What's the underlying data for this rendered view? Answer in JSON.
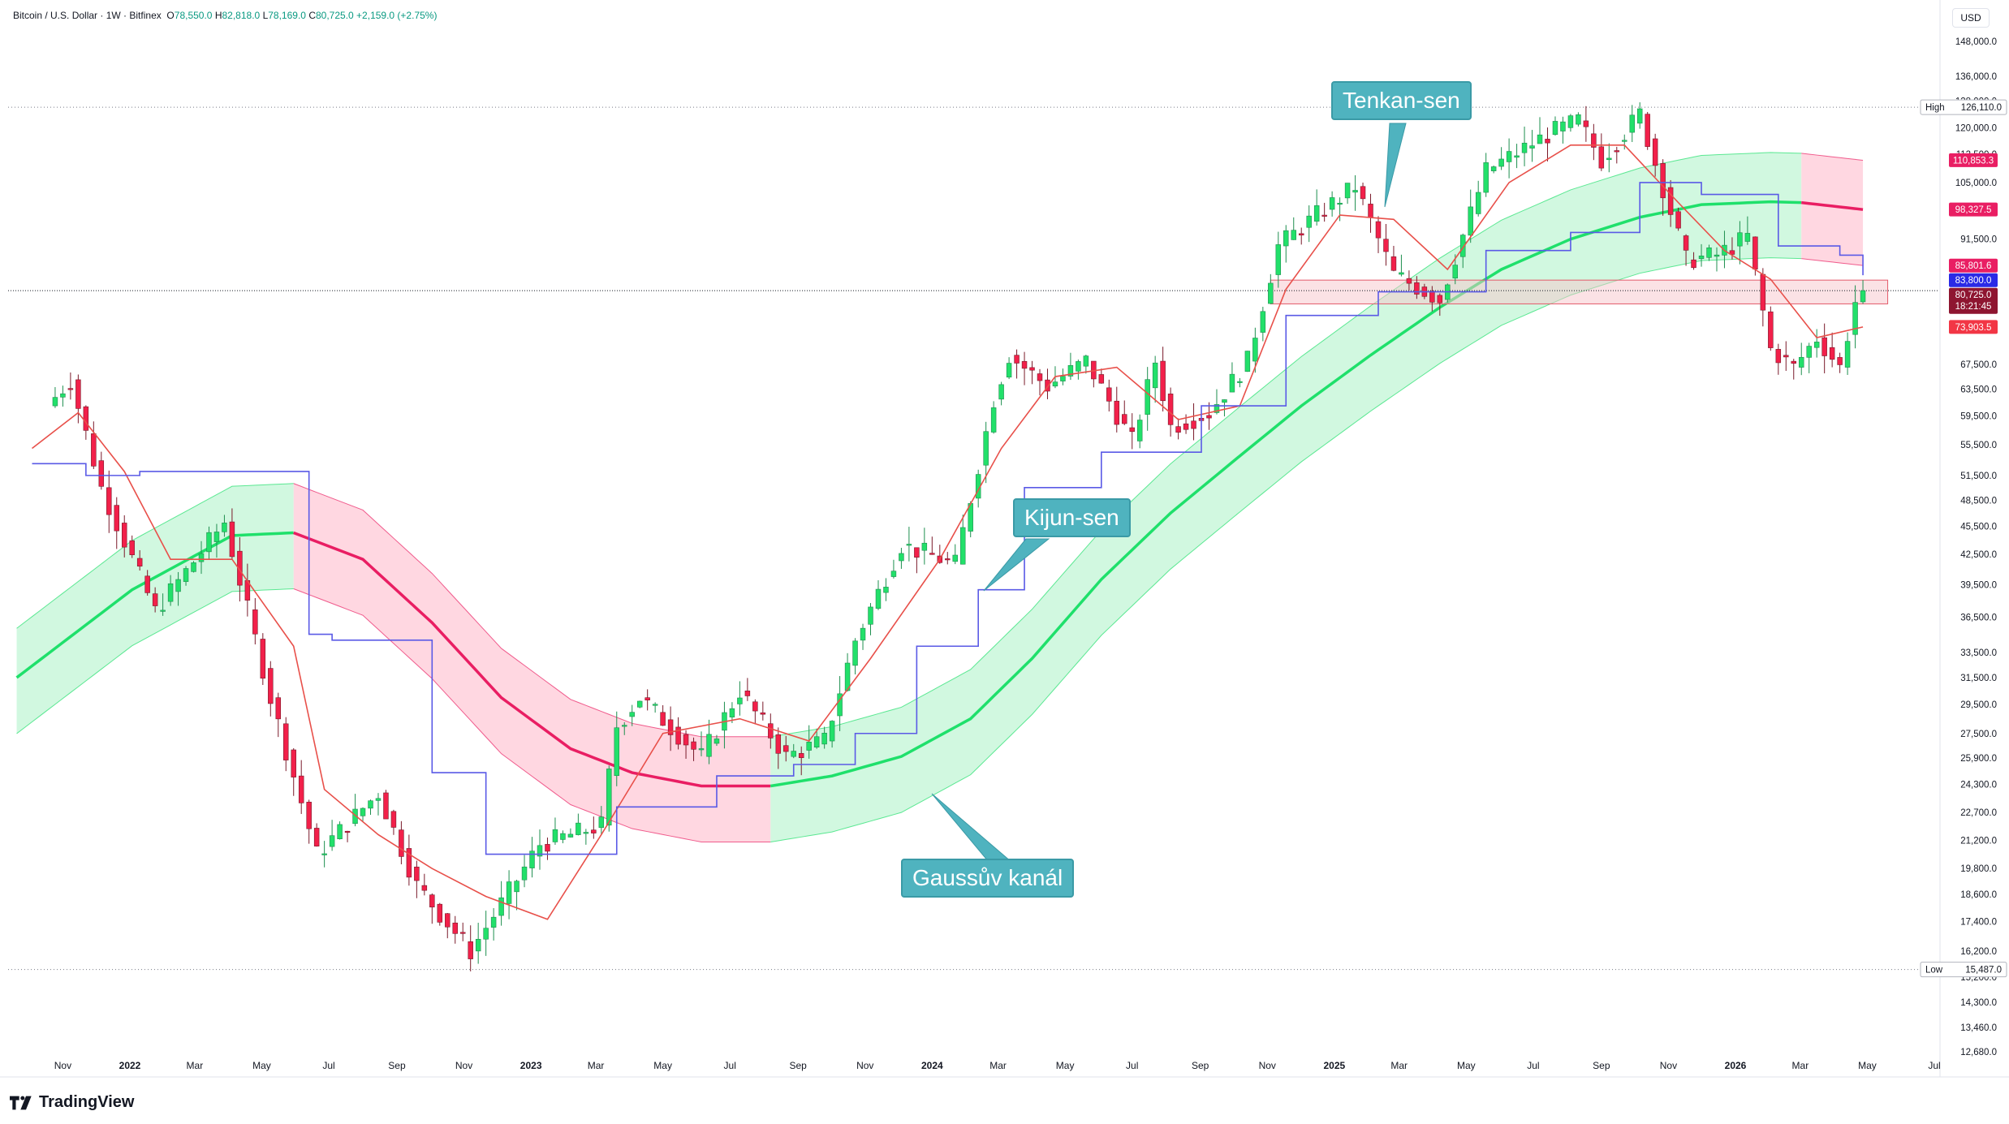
{
  "header": {
    "symbol": "Bitcoin / U.S. Dollar",
    "interval": "1W",
    "exchange": "Bitfinex",
    "o_label": "O",
    "o_value": "78,550.0",
    "h_label": "H",
    "h_value": "82,818.0",
    "l_label": "L",
    "l_value": "78,169.0",
    "c_label": "C",
    "c_value": "80,725.0",
    "change": "+2,159.0 (+2.75%)"
  },
  "currency": "USD",
  "brand": "TradingView",
  "annotations": {
    "tenkan": "Tenkan-sen",
    "kijun": "Kijun-sen",
    "gauss": "Gaussův kanál"
  },
  "colors": {
    "up": "#22e06a",
    "down": "#f2204a",
    "tenkan": "#e8504a",
    "kijun": "#5a5ae6",
    "gauss_up_fill": "#c9f7da",
    "gauss_up_line": "#1fe06b",
    "gauss_down_fill": "#ffd0dc",
    "gauss_down_line": "#e91e63",
    "callout": "#4fb3bf"
  },
  "chart_data": {
    "type": "candlestick",
    "scale": "log",
    "ylim": [
      12680,
      148000
    ],
    "y_ticks": [
      "148,000.0",
      "136,000.0",
      "128,000.0",
      "120,000.0",
      "112,500.0",
      "105,000.0",
      "98,000.0",
      "91,500.0",
      "85,500.0",
      "79,500.0",
      "73,500.0",
      "67,500.0",
      "63,500.0",
      "59,500.0",
      "55,500.0",
      "51,500.0",
      "48,500.0",
      "45,500.0",
      "42,500.0",
      "39,500.0",
      "36,500.0",
      "33,500.0",
      "31,500.0",
      "29,500.0",
      "27,500.0",
      "25,900.0",
      "24,300.0",
      "22,700.0",
      "21,200.0",
      "19,800.0",
      "18,600.0",
      "17,400.0",
      "16,200.0",
      "15,200.0",
      "14,300.0",
      "13,460.0",
      "12,680.0"
    ],
    "x_ticks": [
      {
        "label": "Nov",
        "date": "2021-11-01",
        "bold": false
      },
      {
        "label": "2022",
        "date": "2022-01-01",
        "bold": true
      },
      {
        "label": "Mar",
        "date": "2022-03-01",
        "bold": false
      },
      {
        "label": "May",
        "date": "2022-05-01",
        "bold": false
      },
      {
        "label": "Jul",
        "date": "2022-07-01",
        "bold": false
      },
      {
        "label": "Sep",
        "date": "2022-09-01",
        "bold": false
      },
      {
        "label": "Nov",
        "date": "2022-11-01",
        "bold": false
      },
      {
        "label": "2023",
        "date": "2023-01-01",
        "bold": true
      },
      {
        "label": "Mar",
        "date": "2023-03-01",
        "bold": false
      },
      {
        "label": "May",
        "date": "2023-05-01",
        "bold": false
      },
      {
        "label": "Jul",
        "date": "2023-07-01",
        "bold": false
      },
      {
        "label": "Sep",
        "date": "2023-09-01",
        "bold": false
      },
      {
        "label": "Nov",
        "date": "2023-11-01",
        "bold": false
      },
      {
        "label": "2024",
        "date": "2024-01-01",
        "bold": true
      },
      {
        "label": "Mar",
        "date": "2024-03-01",
        "bold": false
      },
      {
        "label": "May",
        "date": "2024-05-01",
        "bold": false
      },
      {
        "label": "Jul",
        "date": "2024-07-01",
        "bold": false
      },
      {
        "label": "Sep",
        "date": "2024-09-01",
        "bold": false
      },
      {
        "label": "Nov",
        "date": "2024-11-01",
        "bold": false
      },
      {
        "label": "2025",
        "date": "2025-01-01",
        "bold": true
      },
      {
        "label": "Mar",
        "date": "2025-03-01",
        "bold": false
      },
      {
        "label": "May",
        "date": "2025-05-01",
        "bold": false
      },
      {
        "label": "Jul",
        "date": "2025-07-01",
        "bold": false
      },
      {
        "label": "Sep",
        "date": "2025-09-01",
        "bold": false
      },
      {
        "label": "Nov",
        "date": "2025-11-01",
        "bold": false
      },
      {
        "label": "2026",
        "date": "2026-01-01",
        "bold": true
      },
      {
        "label": "Mar",
        "date": "2026-03-01",
        "bold": false
      },
      {
        "label": "May",
        "date": "2026-05-01",
        "bold": false
      },
      {
        "label": "Jul",
        "date": "2026-07-01",
        "bold": false
      }
    ],
    "high_marker": {
      "label": "High",
      "value": 126110.0,
      "text": "126,110.0"
    },
    "low_marker": {
      "label": "Low",
      "value": 15487.0,
      "text": "15,487.0"
    },
    "price_labels": [
      {
        "value": 110853.3,
        "text": "110,853.3",
        "color": "#e91e63"
      },
      {
        "value": 98327.5,
        "text": "98,327.5",
        "color": "#e91e63"
      },
      {
        "value": 85801.6,
        "text": "85,801.6",
        "color": "#e91e63"
      },
      {
        "value": 83800.0,
        "text": "83,800.0",
        "color": "#2a2ae6"
      },
      {
        "value": 80725.0,
        "text": "80,725.0",
        "color": "#8e1530"
      },
      {
        "value": 73903.5,
        "text": "73,903.5",
        "color": "#f23645"
      }
    ],
    "countdown": "18:21:45",
    "zone": {
      "from_date": "2024-11-04",
      "to_date": "2026-04-20",
      "low": 78169,
      "high": 82818
    },
    "key_closes": [
      {
        "date": "2021-10-18",
        "close": 61000
      },
      {
        "date": "2021-11-08",
        "close": 65000
      },
      {
        "date": "2021-12-06",
        "close": 50000
      },
      {
        "date": "2022-01-24",
        "close": 37000
      },
      {
        "date": "2022-03-28",
        "close": 46000
      },
      {
        "date": "2022-05-09",
        "close": 30000
      },
      {
        "date": "2022-06-20",
        "close": 20500
      },
      {
        "date": "2022-08-15",
        "close": 23800
      },
      {
        "date": "2022-09-19",
        "close": 19000
      },
      {
        "date": "2022-11-07",
        "close": 16200
      },
      {
        "date": "2023-01-09",
        "close": 21000
      },
      {
        "date": "2023-03-06",
        "close": 22000
      },
      {
        "date": "2023-03-20",
        "close": 28000
      },
      {
        "date": "2023-04-10",
        "close": 30000
      },
      {
        "date": "2023-06-05",
        "close": 26000
      },
      {
        "date": "2023-07-10",
        "close": 30500
      },
      {
        "date": "2023-08-21",
        "close": 26000
      },
      {
        "date": "2023-09-25",
        "close": 27000
      },
      {
        "date": "2023-10-23",
        "close": 34500
      },
      {
        "date": "2023-12-04",
        "close": 43500
      },
      {
        "date": "2024-01-22",
        "close": 41500
      },
      {
        "date": "2024-02-26",
        "close": 62000
      },
      {
        "date": "2024-03-11",
        "close": 69000
      },
      {
        "date": "2024-04-15",
        "close": 64000
      },
      {
        "date": "2024-05-20",
        "close": 68000
      },
      {
        "date": "2024-07-01",
        "close": 56000
      },
      {
        "date": "2024-07-22",
        "close": 68000
      },
      {
        "date": "2024-08-05",
        "close": 58000
      },
      {
        "date": "2024-09-09",
        "close": 60000
      },
      {
        "date": "2024-10-14",
        "close": 68000
      },
      {
        "date": "2024-11-11",
        "close": 90000
      },
      {
        "date": "2024-12-16",
        "close": 97000
      },
      {
        "date": "2025-01-20",
        "close": 104000
      },
      {
        "date": "2025-02-24",
        "close": 84000
      },
      {
        "date": "2025-04-07",
        "close": 79000
      },
      {
        "date": "2025-05-19",
        "close": 108000
      },
      {
        "date": "2025-07-14",
        "close": 118000
      },
      {
        "date": "2025-08-11",
        "close": 122000
      },
      {
        "date": "2025-09-01",
        "close": 111000
      },
      {
        "date": "2025-10-06",
        "close": 124000
      },
      {
        "date": "2025-10-20",
        "close": 110000
      },
      {
        "date": "2025-11-17",
        "close": 87000
      },
      {
        "date": "2025-12-15",
        "close": 88000
      },
      {
        "date": "2026-01-12",
        "close": 92000
      },
      {
        "date": "2026-02-02",
        "close": 70000
      },
      {
        "date": "2026-02-23",
        "close": 67000
      },
      {
        "date": "2026-03-16",
        "close": 72000
      },
      {
        "date": "2026-04-06",
        "close": 67000
      },
      {
        "date": "2026-04-20",
        "close": 78566
      },
      {
        "date": "2026-04-27",
        "close": 80725
      }
    ],
    "last_candle": {
      "open": 78550.0,
      "high": 82818.0,
      "low": 78169.0,
      "close": 80725.0
    },
    "gauss_basis": [
      {
        "date": "2021-09-20",
        "value": 31500
      },
      {
        "date": "2022-01-03",
        "value": 39000
      },
      {
        "date": "2022-04-04",
        "value": 44500
      },
      {
        "date": "2022-05-30",
        "value": 44800
      },
      {
        "date": "2022-08-01",
        "value": 42000
      },
      {
        "date": "2022-10-03",
        "value": 36000
      },
      {
        "date": "2022-12-05",
        "value": 30000
      },
      {
        "date": "2023-02-06",
        "value": 26500
      },
      {
        "date": "2023-04-03",
        "value": 25000
      },
      {
        "date": "2023-06-05",
        "value": 24200
      },
      {
        "date": "2023-08-07",
        "value": 24200
      },
      {
        "date": "2023-10-02",
        "value": 24800
      },
      {
        "date": "2023-12-04",
        "value": 26000
      },
      {
        "date": "2024-02-05",
        "value": 28500
      },
      {
        "date": "2024-04-01",
        "value": 33000
      },
      {
        "date": "2024-06-03",
        "value": 40000
      },
      {
        "date": "2024-08-05",
        "value": 47000
      },
      {
        "date": "2024-10-07",
        "value": 54000
      },
      {
        "date": "2024-12-02",
        "value": 61000
      },
      {
        "date": "2025-02-03",
        "value": 69000
      },
      {
        "date": "2025-04-07",
        "value": 77500
      },
      {
        "date": "2025-06-02",
        "value": 85000
      },
      {
        "date": "2025-08-04",
        "value": 91500
      },
      {
        "date": "2025-10-06",
        "value": 96500
      },
      {
        "date": "2025-12-01",
        "value": 99500
      },
      {
        "date": "2026-02-02",
        "value": 100200
      },
      {
        "date": "2026-03-02",
        "value": 100000
      },
      {
        "date": "2026-04-27",
        "value": 98327.5
      }
    ],
    "gauss_direction_changes": [
      {
        "from_date": "2021-09-20",
        "to_date": "2022-05-30",
        "direction": "up"
      },
      {
        "from_date": "2022-05-30",
        "to_date": "2023-08-07",
        "direction": "down"
      },
      {
        "from_date": "2023-08-07",
        "to_date": "2026-03-02",
        "direction": "up"
      },
      {
        "from_date": "2026-03-02",
        "to_date": "2026-04-27",
        "direction": "down"
      }
    ],
    "gauss_band_ratio_upper": 1.1273,
    "gauss_band_ratio_lower": 0.8727,
    "tenkan_sen": [
      {
        "date": "2021-10-04",
        "value": 55000
      },
      {
        "date": "2021-11-15",
        "value": 60000
      },
      {
        "date": "2021-12-27",
        "value": 52000
      },
      {
        "date": "2022-02-07",
        "value": 42000
      },
      {
        "date": "2022-04-04",
        "value": 42000
      },
      {
        "date": "2022-05-30",
        "value": 34000
      },
      {
        "date": "2022-06-27",
        "value": 24000
      },
      {
        "date": "2022-08-15",
        "value": 21500
      },
      {
        "date": "2022-10-03",
        "value": 19800
      },
      {
        "date": "2022-11-21",
        "value": 18500
      },
      {
        "date": "2023-01-16",
        "value": 17500
      },
      {
        "date": "2023-03-06",
        "value": 21500
      },
      {
        "date": "2023-05-01",
        "value": 27500
      },
      {
        "date": "2023-07-10",
        "value": 28500
      },
      {
        "date": "2023-09-11",
        "value": 27000
      },
      {
        "date": "2023-11-06",
        "value": 33000
      },
      {
        "date": "2024-01-08",
        "value": 42000
      },
      {
        "date": "2024-03-04",
        "value": 55000
      },
      {
        "date": "2024-04-22",
        "value": 65500
      },
      {
        "date": "2024-06-17",
        "value": 67000
      },
      {
        "date": "2024-08-12",
        "value": 59000
      },
      {
        "date": "2024-10-07",
        "value": 61000
      },
      {
        "date": "2024-11-18",
        "value": 81000
      },
      {
        "date": "2025-01-06",
        "value": 97000
      },
      {
        "date": "2025-02-24",
        "value": 96000
      },
      {
        "date": "2025-04-14",
        "value": 85000
      },
      {
        "date": "2025-06-09",
        "value": 105000
      },
      {
        "date": "2025-08-04",
        "value": 115000
      },
      {
        "date": "2025-09-22",
        "value": 115000
      },
      {
        "date": "2025-11-10",
        "value": 100000
      },
      {
        "date": "2025-12-22",
        "value": 89000
      },
      {
        "date": "2026-02-02",
        "value": 83000
      },
      {
        "date": "2026-03-16",
        "value": 72000
      },
      {
        "date": "2026-04-27",
        "value": 73903.5
      }
    ],
    "kijun_sen": [
      {
        "date": "2021-10-04",
        "value": 53000
      },
      {
        "date": "2021-11-22",
        "value": 51500
      },
      {
        "date": "2022-01-10",
        "value": 52000
      },
      {
        "date": "2022-05-16",
        "value": 52000
      },
      {
        "date": "2022-06-13",
        "value": 35000
      },
      {
        "date": "2022-07-04",
        "value": 34500
      },
      {
        "date": "2022-09-05",
        "value": 34500
      },
      {
        "date": "2022-10-03",
        "value": 25000
      },
      {
        "date": "2022-11-21",
        "value": 20500
      },
      {
        "date": "2023-02-06",
        "value": 20500
      },
      {
        "date": "2023-03-20",
        "value": 23000
      },
      {
        "date": "2023-06-19",
        "value": 24800
      },
      {
        "date": "2023-08-28",
        "value": 25500
      },
      {
        "date": "2023-10-23",
        "value": 27500
      },
      {
        "date": "2023-12-18",
        "value": 34000
      },
      {
        "date": "2024-02-12",
        "value": 39000
      },
      {
        "date": "2024-03-25",
        "value": 50000
      },
      {
        "date": "2024-06-03",
        "value": 54500
      },
      {
        "date": "2024-09-02",
        "value": 61000
      },
      {
        "date": "2024-11-18",
        "value": 76000
      },
      {
        "date": "2025-02-10",
        "value": 80500
      },
      {
        "date": "2025-05-19",
        "value": 89000
      },
      {
        "date": "2025-08-04",
        "value": 93000
      },
      {
        "date": "2025-10-06",
        "value": 105000
      },
      {
        "date": "2025-12-01",
        "value": 102000
      },
      {
        "date": "2026-02-09",
        "value": 90000
      },
      {
        "date": "2026-04-06",
        "value": 88000
      },
      {
        "date": "2026-04-27",
        "value": 83800
      }
    ]
  }
}
